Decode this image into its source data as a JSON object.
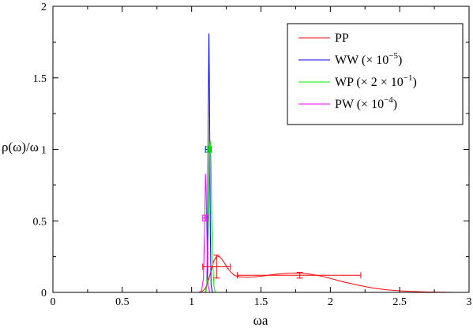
{
  "chart_data": {
    "type": "line",
    "xlabel": "ωa",
    "ylabel": "ρ(ω)/ω",
    "xlim": [
      0,
      3
    ],
    "ylim": [
      0,
      2
    ],
    "x_ticks": [
      0,
      0.5,
      1,
      1.5,
      2,
      2.5,
      3
    ],
    "x_tick_labels": [
      "0",
      "0.5",
      "1",
      "1.5",
      "2",
      "2.5",
      "3"
    ],
    "y_ticks": [
      0,
      0.5,
      1,
      1.5,
      2
    ],
    "y_tick_labels": [
      "0",
      "0.5",
      "1",
      "1.5",
      "2"
    ],
    "grid": false,
    "legend_position": "top-right",
    "series": [
      {
        "name": "PP",
        "color": "#ff0000",
        "x": [
          1.05,
          1.08,
          1.1,
          1.12,
          1.14,
          1.16,
          1.18,
          1.2,
          1.22,
          1.24,
          1.26,
          1.28,
          1.3,
          1.32,
          1.35,
          1.4,
          1.45,
          1.5,
          1.55,
          1.6,
          1.65,
          1.7,
          1.75,
          1.8,
          1.85,
          1.9,
          1.95,
          2.0,
          2.05,
          2.1,
          2.2,
          2.3,
          2.4,
          2.5,
          2.6,
          2.7,
          2.8,
          2.9,
          3.0
        ],
        "values": [
          0.0,
          0.01,
          0.03,
          0.08,
          0.15,
          0.22,
          0.255,
          0.25,
          0.23,
          0.2,
          0.17,
          0.145,
          0.125,
          0.115,
          0.108,
          0.105,
          0.108,
          0.113,
          0.12,
          0.126,
          0.131,
          0.134,
          0.135,
          0.133,
          0.128,
          0.12,
          0.11,
          0.098,
          0.085,
          0.072,
          0.05,
          0.032,
          0.019,
          0.011,
          0.006,
          0.003,
          0.001,
          0.0,
          0.0
        ]
      },
      {
        "name": "WW (× 10^−5)",
        "color": "#0000ff",
        "x": [
          1.1,
          1.11,
          1.115,
          1.12,
          1.125,
          1.13,
          1.135,
          1.14,
          1.15
        ],
        "values": [
          0.0,
          0.05,
          0.5,
          1.2,
          1.81,
          1.2,
          0.4,
          0.05,
          0.0
        ]
      },
      {
        "name": "WP (× 2 × 10^−1)",
        "color": "#00ee00",
        "x": [
          1.1,
          1.115,
          1.125,
          1.13,
          1.135,
          1.14,
          1.145,
          1.15,
          1.16,
          1.17
        ],
        "values": [
          0.0,
          0.1,
          0.6,
          1.0,
          1.06,
          0.9,
          0.5,
          0.25,
          0.05,
          0.0
        ]
      },
      {
        "name": "PW (× 10^−4)",
        "color": "#ff00ff",
        "x": [
          1.07,
          1.085,
          1.095,
          1.1,
          1.105,
          1.11,
          1.115,
          1.12,
          1.13
        ],
        "values": [
          0.0,
          0.1,
          0.5,
          0.83,
          0.7,
          0.4,
          0.15,
          0.05,
          0.0
        ]
      }
    ],
    "error_bars": [
      {
        "series": "PP",
        "x": 1.18,
        "y": 0.18,
        "xerr": [
          1.08,
          1.28
        ],
        "yerr": [
          0.1,
          0.26
        ]
      },
      {
        "series": "PP",
        "x": 1.78,
        "y": 0.12,
        "xerr": [
          1.33,
          2.22
        ],
        "yerr": [
          0.1,
          0.14
        ]
      },
      {
        "series": "WW (× 10^−5)",
        "x": 1.12,
        "y": 1.0,
        "xerr": [
          1.1,
          1.14
        ],
        "yerr": [
          0.98,
          1.02
        ]
      },
      {
        "series": "WP (× 2 × 10^−1)",
        "x": 1.125,
        "y": 1.0,
        "xerr": [
          1.115,
          1.135
        ],
        "yerr": [
          0.98,
          1.02
        ]
      },
      {
        "series": "PW (× 10^−4)",
        "x": 1.1,
        "y": 0.52,
        "xerr": [
          1.08,
          1.12
        ],
        "yerr": [
          0.5,
          0.54
        ]
      }
    ],
    "legend": [
      {
        "base": "PP",
        "sup": "",
        "tail": ""
      },
      {
        "base": "WW (× 10",
        "sup": "−5",
        "tail": ")"
      },
      {
        "base": "WP (× 2 × 10",
        "sup": "−1",
        "tail": ")"
      },
      {
        "base": "PW (× 10",
        "sup": "−4",
        "tail": ")"
      }
    ]
  }
}
